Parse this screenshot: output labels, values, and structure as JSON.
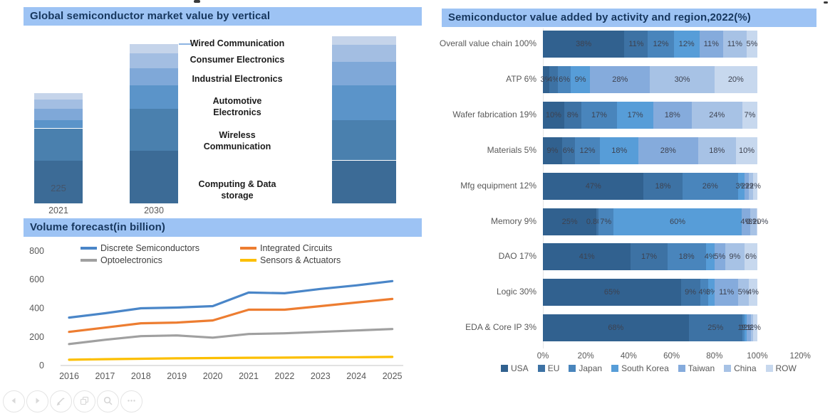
{
  "chart_data": [
    {
      "type": "bar",
      "stacked": true,
      "title": "Global semiconductor market value by vertical",
      "categories": [
        "2021",
        "2030",
        ""
      ],
      "segment_order_bottom_to_top": [
        "Computing & Data storage",
        "Wireless Communication",
        "Automotive Electronics",
        "Industrial Electronics",
        "Consumer Electronics",
        "Wired Communication"
      ],
      "colors_bottom_to_top": [
        "#3c6b96",
        "#4a80ae",
        "#5b94c9",
        "#7fa8d8",
        "#a3bee2",
        "#c5d4ea"
      ],
      "bars": [
        {
          "category": "2021",
          "values_bottom_to_top": [
            225,
            172,
            45,
            60,
            49,
            34
          ],
          "value_label": "225"
        },
        {
          "category": "2030",
          "values_bottom_to_top": [
            279,
            221,
            125,
            91,
            78,
            48
          ]
        },
        {
          "category": "",
          "values_bottom_to_top": [
            228,
            213,
            185,
            125,
            90,
            44
          ]
        }
      ],
      "label_lines": [
        [
          "Wired Communication"
        ],
        [
          "Consumer Electronics"
        ],
        [
          "Industrial Electronics"
        ],
        [
          "Automotive",
          "Electronics"
        ],
        [
          "Wireless",
          "Communication"
        ],
        [
          "Computing & Data",
          "storage"
        ]
      ]
    },
    {
      "type": "line",
      "title": "Volume forecast(in billion)",
      "x": [
        "2016",
        "2017",
        "2018",
        "2019",
        "2020",
        "2021",
        "2022",
        "2023",
        "2024",
        "2025"
      ],
      "ylim": [
        0,
        800
      ],
      "yticks": [
        0,
        200,
        400,
        600,
        800
      ],
      "legend_position": "top",
      "series": [
        {
          "name": "Discrete Semiconductors",
          "color": "#4a86c8",
          "values": [
            335,
            365,
            400,
            405,
            415,
            510,
            505,
            535,
            560,
            590
          ]
        },
        {
          "name": "Integrated Circuits",
          "color": "#ed7d31",
          "values": [
            235,
            265,
            295,
            300,
            315,
            390,
            390,
            415,
            440,
            465
          ]
        },
        {
          "name": "Optoelectronics",
          "color": "#a0a0a0",
          "values": [
            150,
            180,
            205,
            210,
            195,
            220,
            225,
            235,
            245,
            255
          ]
        },
        {
          "name": "Sensors & Actuators",
          "color": "#fcbf00",
          "values": [
            40,
            44,
            47,
            50,
            52,
            54,
            55,
            57,
            58,
            60
          ]
        }
      ]
    },
    {
      "type": "bar",
      "orientation": "horizontal",
      "stacked": true,
      "unit": "%",
      "title": "Semiconductor value added by activity and region,2022(%)",
      "regions": [
        {
          "name": "USA",
          "color": "#31618f"
        },
        {
          "name": "EU",
          "color": "#3d72a4"
        },
        {
          "name": "Japan",
          "color": "#4985bc"
        },
        {
          "name": "South Korea",
          "color": "#579dd8"
        },
        {
          "name": "Taiwan",
          "color": "#85abdc"
        },
        {
          "name": "China",
          "color": "#a7c2e5"
        },
        {
          "name": "ROW",
          "color": "#c7d8ee"
        }
      ],
      "xticks": [
        "0%",
        "20%",
        "40%",
        "60%",
        "80%",
        "100%",
        "120%"
      ],
      "rows": [
        {
          "label": "Overall value chain 100%",
          "values": [
            38,
            11,
            12,
            12,
            11,
            11,
            5
          ],
          "labels": [
            "38%",
            "11%",
            "12%",
            "12%",
            "11%",
            "11%",
            "5%"
          ]
        },
        {
          "label": "ATP 6%",
          "values": [
            3,
            4,
            6,
            9,
            28,
            30,
            20
          ],
          "labels": [
            "3%",
            "4%",
            "6%",
            "9%",
            "28%",
            "30%",
            "20%"
          ]
        },
        {
          "label": "Wafer fabrication 19%",
          "values": [
            10,
            8,
            17,
            17,
            18,
            24,
            7
          ],
          "labels": [
            "10%",
            "8%",
            "17%",
            "17%",
            "18%",
            "24%",
            "7%"
          ]
        },
        {
          "label": "Materials 5%",
          "values": [
            9,
            6,
            12,
            18,
            28,
            18,
            10
          ],
          "labels": [
            "9%",
            "6%",
            "12%",
            "18%",
            "28%",
            "18%",
            "10%"
          ]
        },
        {
          "label": "Mfg equipment 12%",
          "values": [
            47,
            18,
            26,
            3,
            2,
            2,
            2
          ],
          "labels": [
            "47%",
            "18%",
            "26%",
            "3%",
            "2%",
            "2%",
            "2%"
          ]
        },
        {
          "label": "Memory 9%",
          "values": [
            25,
            0.8,
            7,
            60,
            4,
            3,
            0.2
          ],
          "labels": [
            "25%",
            "0.80%",
            "7%",
            "60%",
            "4%",
            "3%",
            "0.20%"
          ]
        },
        {
          "label": "DAO 17%",
          "values": [
            41,
            17,
            18,
            4,
            5,
            9,
            6
          ],
          "labels": [
            "41%",
            "17%",
            "18%",
            "4%",
            "5%",
            "9%",
            "6%"
          ]
        },
        {
          "label": "Logic 30%",
          "values": [
            65,
            9,
            4,
            3,
            11,
            5,
            4
          ],
          "labels": [
            "65%",
            "9%",
            "4%",
            "3%",
            "11%",
            "5%",
            "4%"
          ]
        },
        {
          "label": "EDA & Core IP 3%",
          "values": [
            68,
            25,
            1,
            1,
            2,
            1,
            2
          ],
          "labels": [
            "68%",
            "25%",
            "1%",
            "1%",
            "2%",
            "1%",
            "2%"
          ]
        }
      ]
    }
  ],
  "toolbar": {
    "buttons": [
      {
        "name": "previous",
        "icon": "arrow-left-icon"
      },
      {
        "name": "next",
        "icon": "arrow-right-icon"
      },
      {
        "name": "edit",
        "icon": "pencil-icon"
      },
      {
        "name": "copy",
        "icon": "copy-icon"
      },
      {
        "name": "zoom",
        "icon": "search-icon"
      },
      {
        "name": "more",
        "icon": "ellipsis-icon"
      }
    ]
  }
}
